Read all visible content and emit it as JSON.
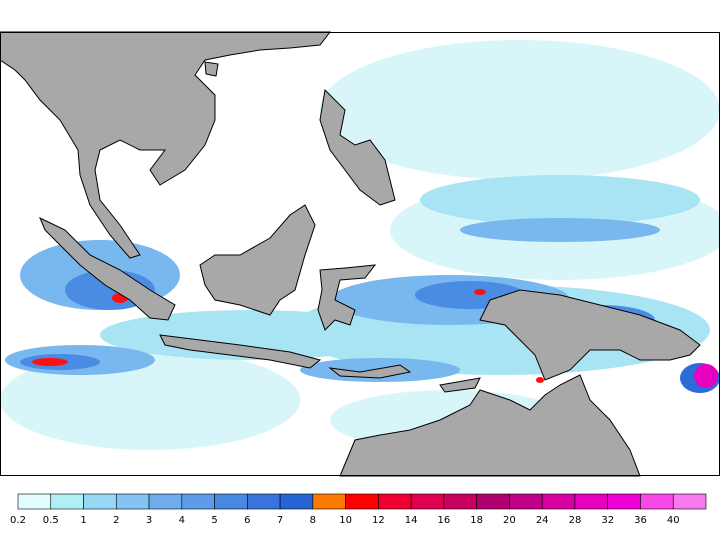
{
  "legend": {
    "labels": [
      "0.2",
      "0.5",
      "1",
      "2",
      "3",
      "4",
      "5",
      "6",
      "7",
      "8",
      "10",
      "12",
      "14",
      "16",
      "18",
      "20",
      "24",
      "28",
      "32",
      "36",
      "40"
    ],
    "colors": [
      "#e0fcfc",
      "#b0f0f4",
      "#98d8f6",
      "#84c4f2",
      "#70acec",
      "#5c9ce8",
      "#4888e0",
      "#3874dc",
      "#2864d4",
      "#ff7a00",
      "#ff0000",
      "#f00030",
      "#e00050",
      "#c80060",
      "#b00070",
      "#c00088",
      "#d800a0",
      "#e800c0",
      "#f000d8",
      "#f848e8",
      "#f878f0"
    ]
  }
}
